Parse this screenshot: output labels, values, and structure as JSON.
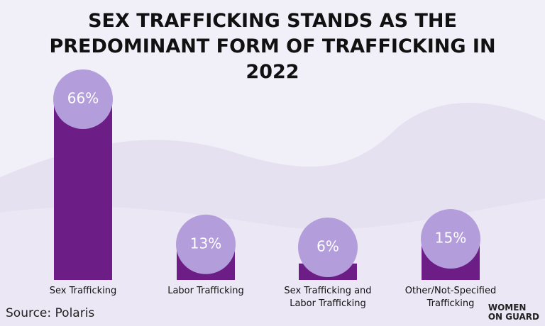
{
  "chart_data": {
    "type": "bar",
    "title": "SEX TRAFFICKING STANDS AS THE PREDOMINANT FORM OF TRAFFICKING IN 2022",
    "categories": [
      "Sex Trafficking",
      "Labor Trafficking",
      "Sex Trafficking and Labor Trafficking",
      "Other/Not-Specified Trafficking"
    ],
    "values": [
      66,
      13,
      6,
      15
    ],
    "value_labels": [
      "66%",
      "13%",
      "6%",
      "15%"
    ],
    "color": "#6c1d86",
    "marker_color": "#b39ddb",
    "source": "Source: Polaris",
    "logo": [
      "WOMEN",
      "ON GUARD"
    ]
  }
}
